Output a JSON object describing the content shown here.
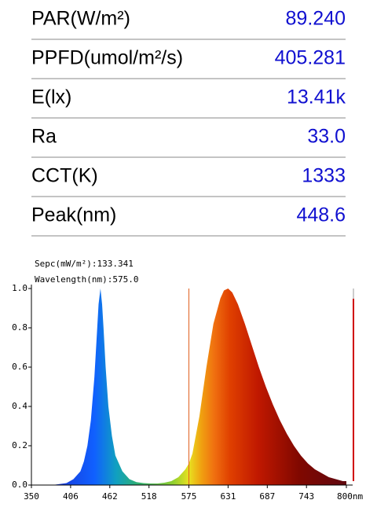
{
  "readings": [
    {
      "label": "PAR(W/m²)",
      "value": "89.240"
    },
    {
      "label": "PPFD(umol/m²/s)",
      "value": "405.281"
    },
    {
      "label": "E(lx)",
      "value": "13.41k"
    },
    {
      "label": "Ra",
      "value": "33.0"
    },
    {
      "label": "CCT(K)",
      "value": "1333"
    },
    {
      "label": "Peak(nm)",
      "value": "448.6"
    }
  ],
  "chart_data": {
    "type": "area",
    "annotations": [
      "Sepc(mW/m²):133.341",
      "Wavelength(nm):575.0"
    ],
    "cursor_x": 575,
    "x": [
      350,
      380,
      400,
      410,
      420,
      425,
      430,
      435,
      440,
      444,
      446,
      448.6,
      451,
      453,
      456,
      460,
      465,
      470,
      480,
      490,
      500,
      510,
      520,
      530,
      540,
      550,
      560,
      570,
      575,
      580,
      590,
      600,
      610,
      620,
      625,
      631,
      637,
      645,
      655,
      665,
      675,
      685,
      695,
      705,
      715,
      725,
      735,
      745,
      755,
      765,
      775,
      785,
      795,
      800
    ],
    "values": [
      0,
      0,
      0.01,
      0.03,
      0.07,
      0.12,
      0.2,
      0.33,
      0.55,
      0.8,
      0.92,
      1.0,
      0.92,
      0.8,
      0.6,
      0.4,
      0.25,
      0.15,
      0.07,
      0.03,
      0.015,
      0.01,
      0.008,
      0.008,
      0.012,
      0.02,
      0.04,
      0.08,
      0.11,
      0.16,
      0.35,
      0.6,
      0.82,
      0.95,
      0.99,
      1.0,
      0.98,
      0.92,
      0.82,
      0.71,
      0.6,
      0.5,
      0.41,
      0.33,
      0.26,
      0.2,
      0.15,
      0.11,
      0.08,
      0.06,
      0.04,
      0.03,
      0.02,
      0.02
    ],
    "xlim": [
      350,
      800
    ],
    "xticks": [
      350,
      406,
      462,
      518,
      575,
      631,
      687,
      743,
      {
        "value": 800,
        "label": "800nm"
      }
    ],
    "ylim": [
      0,
      1.0
    ],
    "yticks": [
      {
        "value": 0,
        "label": "0.0"
      },
      {
        "value": 0.2,
        "label": "0.2"
      },
      {
        "value": 0.4,
        "label": "0.4"
      },
      {
        "value": 0.6,
        "label": "0.6"
      },
      {
        "value": 0.8,
        "label": "0.8"
      },
      {
        "value": 1.0,
        "label": "1.0"
      }
    ]
  }
}
